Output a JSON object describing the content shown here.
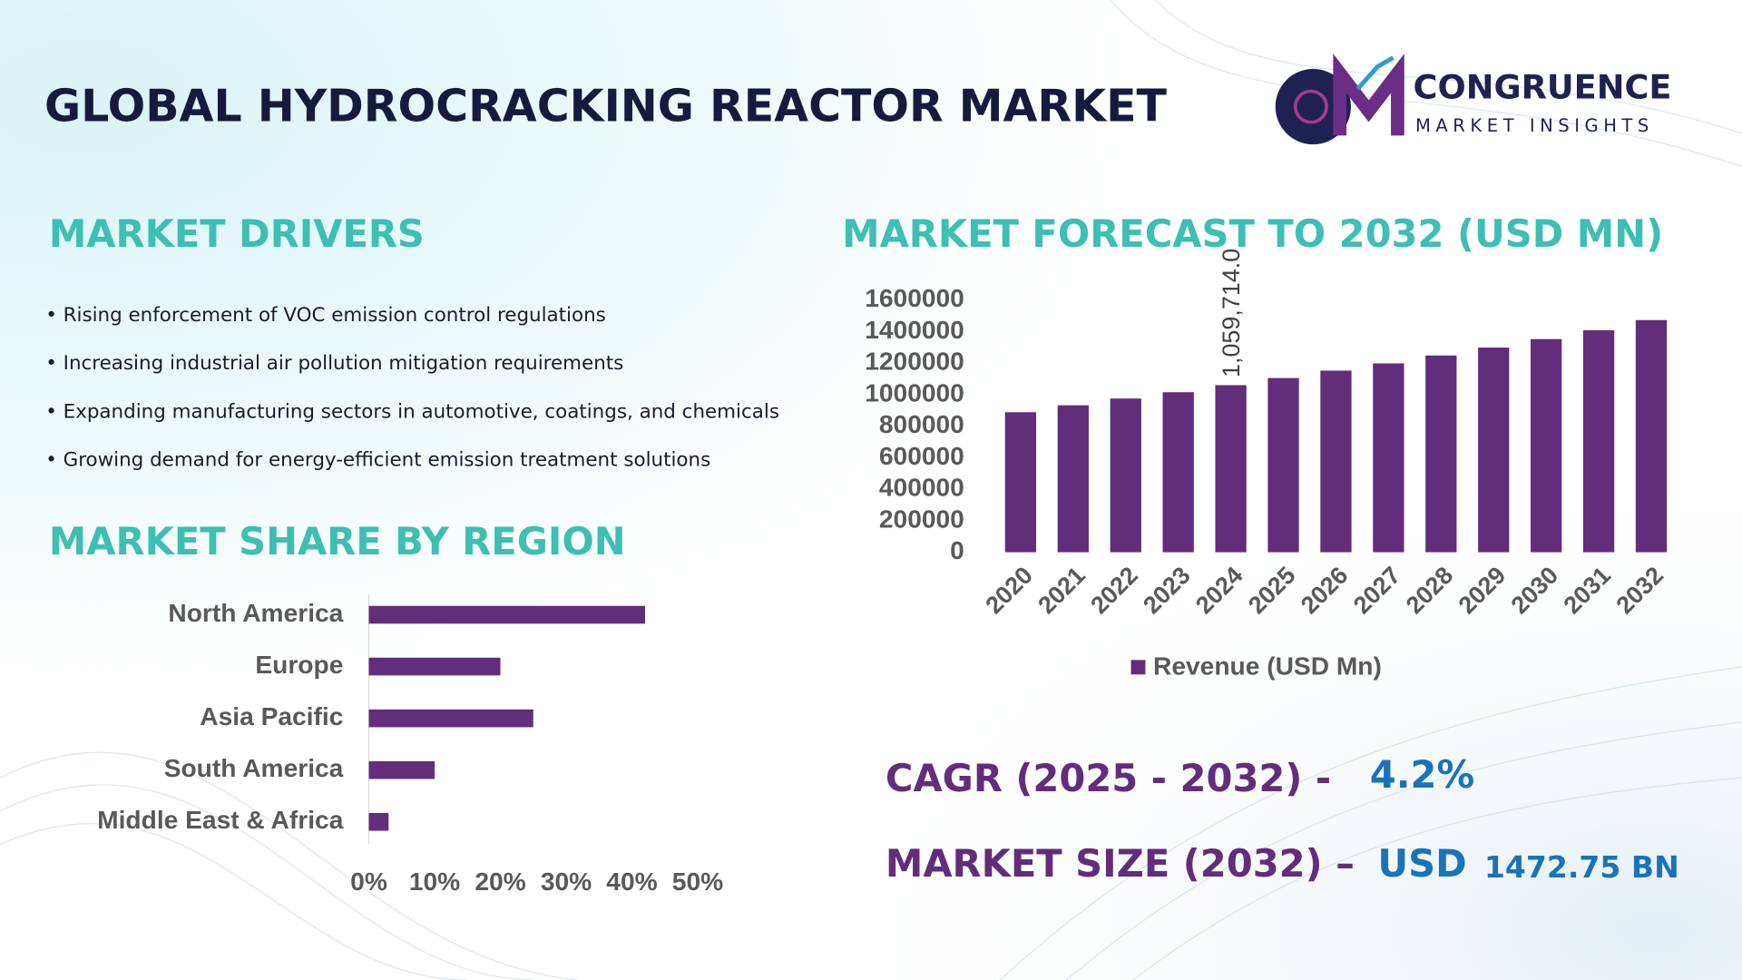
{
  "header": {
    "title": "GLOBAL HYDROCRACKING REACTOR MARKET",
    "logo_name": "CONGRUENCE",
    "logo_tagline": "MARKET INSIGHTS"
  },
  "drivers": {
    "title": "MARKET DRIVERS",
    "items": [
      "• Rising enforcement of VOC emission control regulations",
      "• Increasing industrial air pollution mitigation requirements",
      "• Expanding manufacturing sectors in automotive, coatings, and chemicals",
      "• Growing demand for energy-efficient emission treatment solutions"
    ]
  },
  "region_title": "MARKET SHARE BY REGION",
  "cagr": {
    "label": "CAGR (2025 - 2032) -",
    "value": "4.2%"
  },
  "market_size": {
    "label": "MARKET SIZE (2032) –",
    "currency": "USD",
    "value": "1472.75 BN"
  },
  "chart_data": [
    {
      "type": "bar",
      "title": "MARKET FORECAST TO 2032 (USD MN)",
      "categories": [
        "2020",
        "2021",
        "2022",
        "2023",
        "2024",
        "2025",
        "2026",
        "2027",
        "2028",
        "2029",
        "2030",
        "2031",
        "2032"
      ],
      "series": [
        {
          "name": "Revenue (USD Mn)",
          "color": "#622d7a",
          "values": [
            888000,
            932000,
            975000,
            1015000,
            1059714,
            1105000,
            1152000,
            1198000,
            1248000,
            1298000,
            1352000,
            1408000,
            1472750
          ],
          "value_labels": [
            null,
            null,
            null,
            null,
            "1,059,714.0",
            null,
            null,
            null,
            null,
            null,
            null,
            null,
            null
          ]
        }
      ],
      "ylim": [
        0,
        1600000
      ],
      "yticks": [
        0,
        200000,
        400000,
        600000,
        800000,
        1000000,
        1200000,
        1400000,
        1600000
      ],
      "grid": false,
      "legend": "bottom"
    },
    {
      "type": "bar",
      "orientation": "horizontal",
      "categories": [
        "North America",
        "Europe",
        "Asia Pacific",
        "South America",
        "Middle East & Africa"
      ],
      "values": [
        42,
        20,
        25,
        10,
        3
      ],
      "color": "#622d7a",
      "xlim": [
        0,
        50
      ],
      "xticks": [
        {
          "value": 0,
          "label": "0%"
        },
        {
          "value": 10,
          "label": "10%"
        },
        {
          "value": 20,
          "label": "20%"
        },
        {
          "value": 30,
          "label": "30%"
        },
        {
          "value": 40,
          "label": "40%"
        },
        {
          "value": 50,
          "label": "50%"
        }
      ],
      "grid": false
    }
  ]
}
